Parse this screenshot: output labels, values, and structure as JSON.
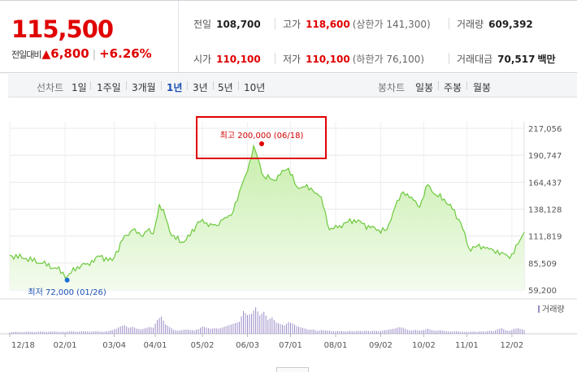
{
  "quote": {
    "price": "115,500",
    "change_label": "전일대비",
    "change_arrow": "▲",
    "change_amount": "6,800",
    "change_percent": "+6.26%"
  },
  "stats": {
    "prev_close": {
      "label": "전일",
      "value": "108,700"
    },
    "high": {
      "label": "고가",
      "value": "118,600",
      "sub": "(상한가 141,300)"
    },
    "volume": {
      "label": "거래량",
      "value": "609,392"
    },
    "open": {
      "label": "시가",
      "value": "110,100"
    },
    "low": {
      "label": "저가",
      "value": "110,100",
      "sub": "(하한가 76,100)"
    },
    "amount": {
      "label": "거래대금",
      "value": "70,517",
      "unit": "백만"
    }
  },
  "toolbar": {
    "line_chart_label": "선차트",
    "periods": [
      {
        "label": "1일"
      },
      {
        "label": "1주일"
      },
      {
        "label": "3개월"
      },
      {
        "label": "1년",
        "active": true
      },
      {
        "label": "3년"
      },
      {
        "label": "5년"
      },
      {
        "label": "10년"
      }
    ],
    "candle_chart_label": "봉차트",
    "candles": [
      {
        "label": "일봉"
      },
      {
        "label": "주봉"
      },
      {
        "label": "월봉"
      }
    ]
  },
  "colors": {
    "line": "#6cc93c",
    "area_top": "#c7eeaa",
    "area_bottom": "#f3fbee",
    "volume": "#9c8cc8",
    "high_marker": "#e00000",
    "low_marker": "#1a6fd8",
    "highlight_box": "#e00000"
  },
  "chart_data": {
    "type": "area",
    "y_ticks": [
      "217,056",
      "190,747",
      "164,437",
      "138,128",
      "111,819",
      "85,509",
      "59,200"
    ],
    "y_tick_values": [
      217056,
      190747,
      164437,
      138128,
      111819,
      85509,
      59200
    ],
    "ylim": [
      59200,
      217056
    ],
    "x_ticks": [
      "12/18",
      "02/01",
      "03/04",
      "04/01",
      "05/02",
      "06/03",
      "07/01",
      "08/01",
      "09/02",
      "10/02",
      "11/01",
      "12/02"
    ],
    "x_tick_positions": [
      0,
      27,
      51,
      71,
      94,
      116,
      137,
      159,
      181,
      202,
      223,
      245
    ],
    "n_days": 252,
    "price_points": [
      [
        0,
        93000
      ],
      [
        8,
        90000
      ],
      [
        16,
        85000
      ],
      [
        23,
        80000
      ],
      [
        28,
        72000
      ],
      [
        33,
        82000
      ],
      [
        38,
        85000
      ],
      [
        44,
        92000
      ],
      [
        50,
        88000
      ],
      [
        55,
        108000
      ],
      [
        60,
        118000
      ],
      [
        64,
        112000
      ],
      [
        67,
        117000
      ],
      [
        70,
        114000
      ],
      [
        73,
        143000
      ],
      [
        76,
        130000
      ],
      [
        79,
        112000
      ],
      [
        84,
        106000
      ],
      [
        88,
        112000
      ],
      [
        92,
        126000
      ],
      [
        96,
        125000
      ],
      [
        101,
        122000
      ],
      [
        104,
        128000
      ],
      [
        108,
        132000
      ],
      [
        112,
        155000
      ],
      [
        116,
        175000
      ],
      [
        119,
        200000
      ],
      [
        121,
        188000
      ],
      [
        124,
        170000
      ],
      [
        127,
        168000
      ],
      [
        130,
        166000
      ],
      [
        133,
        176000
      ],
      [
        136,
        178000
      ],
      [
        140,
        160000
      ],
      [
        144,
        160000
      ],
      [
        148,
        156000
      ],
      [
        152,
        150000
      ],
      [
        156,
        118000
      ],
      [
        160,
        120000
      ],
      [
        164,
        125000
      ],
      [
        168,
        128000
      ],
      [
        172,
        124000
      ],
      [
        176,
        120000
      ],
      [
        180,
        118000
      ],
      [
        184,
        118000
      ],
      [
        188,
        140000
      ],
      [
        192,
        155000
      ],
      [
        196,
        150000
      ],
      [
        200,
        140000
      ],
      [
        204,
        162000
      ],
      [
        208,
        152000
      ],
      [
        212,
        148000
      ],
      [
        216,
        138000
      ],
      [
        220,
        125000
      ],
      [
        224,
        100000
      ],
      [
        228,
        102000
      ],
      [
        232,
        100000
      ],
      [
        236,
        98000
      ],
      [
        240,
        96000
      ],
      [
        244,
        90000
      ],
      [
        248,
        104000
      ],
      [
        251,
        115500
      ]
    ],
    "volume_points": [
      [
        0,
        3
      ],
      [
        3,
        4
      ],
      [
        6,
        3
      ],
      [
        9,
        4
      ],
      [
        12,
        3
      ],
      [
        15,
        4
      ],
      [
        18,
        3
      ],
      [
        21,
        4
      ],
      [
        24,
        3
      ],
      [
        27,
        3
      ],
      [
        30,
        4
      ],
      [
        33,
        3
      ],
      [
        36,
        4
      ],
      [
        39,
        3
      ],
      [
        42,
        4
      ],
      [
        45,
        3
      ],
      [
        48,
        4
      ],
      [
        50,
        6
      ],
      [
        52,
        8
      ],
      [
        54,
        12
      ],
      [
        56,
        14
      ],
      [
        58,
        10
      ],
      [
        60,
        12
      ],
      [
        62,
        9
      ],
      [
        64,
        8
      ],
      [
        66,
        10
      ],
      [
        68,
        13
      ],
      [
        70,
        12
      ],
      [
        72,
        28
      ],
      [
        74,
        36
      ],
      [
        76,
        20
      ],
      [
        78,
        14
      ],
      [
        80,
        8
      ],
      [
        82,
        6
      ],
      [
        84,
        7
      ],
      [
        86,
        8
      ],
      [
        88,
        7
      ],
      [
        90,
        6
      ],
      [
        92,
        8
      ],
      [
        94,
        12
      ],
      [
        96,
        10
      ],
      [
        98,
        8
      ],
      [
        100,
        9
      ],
      [
        102,
        8
      ],
      [
        104,
        10
      ],
      [
        106,
        12
      ],
      [
        108,
        14
      ],
      [
        110,
        16
      ],
      [
        112,
        18
      ],
      [
        114,
        34
      ],
      [
        116,
        28
      ],
      [
        118,
        30
      ],
      [
        120,
        40
      ],
      [
        122,
        28
      ],
      [
        124,
        34
      ],
      [
        126,
        22
      ],
      [
        128,
        26
      ],
      [
        130,
        18
      ],
      [
        132,
        16
      ],
      [
        134,
        14
      ],
      [
        136,
        20
      ],
      [
        138,
        18
      ],
      [
        140,
        14
      ],
      [
        142,
        12
      ],
      [
        144,
        10
      ],
      [
        146,
        8
      ],
      [
        148,
        9
      ],
      [
        150,
        6
      ],
      [
        152,
        8
      ],
      [
        154,
        7
      ],
      [
        156,
        6
      ],
      [
        158,
        5
      ],
      [
        160,
        5
      ],
      [
        162,
        5
      ],
      [
        164,
        4
      ],
      [
        166,
        5
      ],
      [
        168,
        4
      ],
      [
        170,
        5
      ],
      [
        172,
        4
      ],
      [
        174,
        5
      ],
      [
        176,
        4
      ],
      [
        178,
        5
      ],
      [
        180,
        4
      ],
      [
        182,
        5
      ],
      [
        184,
        6
      ],
      [
        186,
        7
      ],
      [
        188,
        8
      ],
      [
        190,
        10
      ],
      [
        192,
        9
      ],
      [
        194,
        6
      ],
      [
        196,
        5
      ],
      [
        198,
        6
      ],
      [
        200,
        5
      ],
      [
        202,
        6
      ],
      [
        204,
        8
      ],
      [
        206,
        6
      ],
      [
        208,
        5
      ],
      [
        210,
        6
      ],
      [
        212,
        5
      ],
      [
        214,
        4
      ],
      [
        216,
        4
      ],
      [
        218,
        5
      ],
      [
        220,
        4
      ],
      [
        222,
        4
      ],
      [
        224,
        4
      ],
      [
        226,
        5
      ],
      [
        228,
        4
      ],
      [
        230,
        5
      ],
      [
        232,
        4
      ],
      [
        234,
        6
      ],
      [
        236,
        5
      ],
      [
        238,
        8
      ],
      [
        240,
        10
      ],
      [
        242,
        6
      ],
      [
        244,
        5
      ],
      [
        246,
        8
      ],
      [
        248,
        9
      ],
      [
        250,
        7
      ]
    ],
    "volume_max": 40,
    "legend_label": "거래량",
    "high": {
      "day": 119,
      "value": 200000,
      "label": "최고 200,000 (06/18)"
    },
    "low": {
      "day": 28,
      "value": 72000,
      "label": "최저 72,000 (01/26)"
    }
  }
}
